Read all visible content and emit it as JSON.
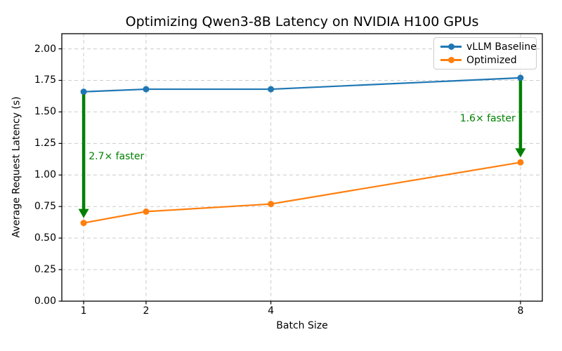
{
  "chart_data": {
    "type": "line",
    "title": "Optimizing Qwen3-8B Latency on NVIDIA H100 GPUs",
    "xlabel": "Batch Size",
    "ylabel": "Average Request Latency (s)",
    "x": [
      1,
      2,
      4,
      8
    ],
    "series": [
      {
        "name": "vLLM Baseline",
        "color": "#1f77b4",
        "values": [
          1.66,
          1.68,
          1.68,
          1.77
        ]
      },
      {
        "name": "Optimized",
        "color": "#ff7f0e",
        "values": [
          0.62,
          0.71,
          0.77,
          1.1
        ]
      }
    ],
    "xlim": [
      0.65,
      8.35
    ],
    "ylim": [
      0,
      2.12
    ],
    "xticks": {
      "values": [
        1,
        2,
        4,
        8
      ],
      "labels": [
        "1",
        "2",
        "4",
        "8"
      ]
    },
    "yticks": {
      "values": [
        0,
        0.25,
        0.5,
        0.75,
        1,
        1.25,
        1.5,
        1.75,
        2
      ],
      "labels": [
        "0.00",
        "0.25",
        "0.50",
        "0.75",
        "1.00",
        "1.25",
        "1.50",
        "1.75",
        "2.00"
      ]
    },
    "grid": true,
    "grid_style": {
      "color": "#cccccc",
      "dash": "5 4"
    },
    "axis_color": "#000000",
    "legend": {
      "position": "upper right",
      "items": [
        "vLLM Baseline",
        "Optimized"
      ]
    },
    "annotations": [
      {
        "label": "2.7× faster",
        "color": "#008000",
        "arrow_x": 1,
        "arrow_from": 1.66,
        "arrow_to": 0.62,
        "label_x": 1.08,
        "label_y": 1.14,
        "label_anchor": "start"
      },
      {
        "label": "1.6× faster",
        "color": "#008000",
        "arrow_x": 8,
        "arrow_from": 1.77,
        "arrow_to": 1.1,
        "label_x": 7.92,
        "label_y": 1.44,
        "label_anchor": "end"
      }
    ]
  }
}
